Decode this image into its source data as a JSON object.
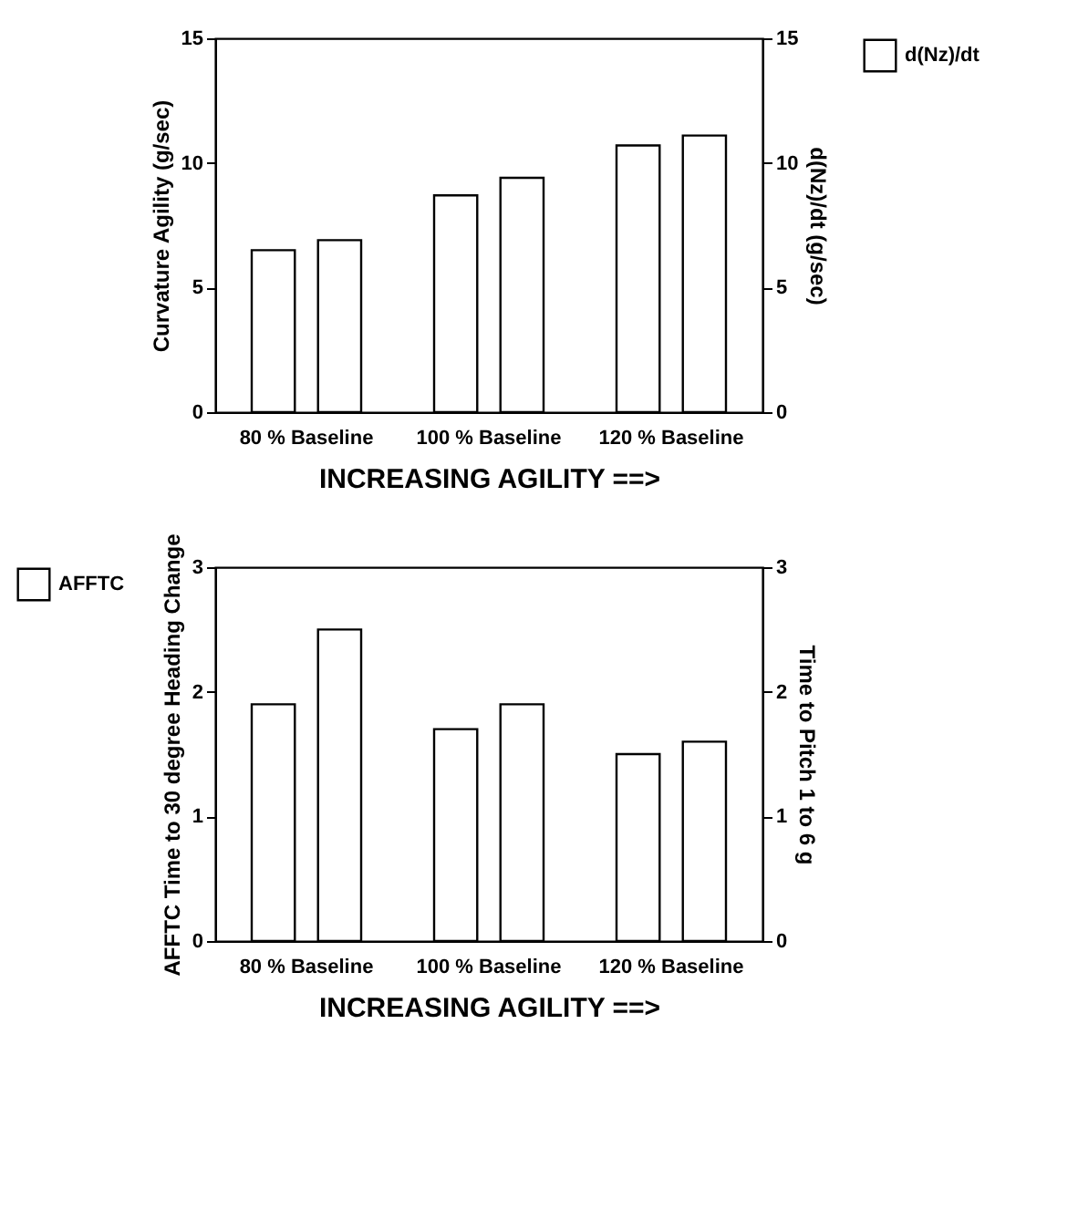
{
  "chart_data": [
    {
      "type": "bar",
      "categories": [
        "80 % Baseline",
        "100 % Baseline",
        "120 % Baseline"
      ],
      "xlabel": "INCREASING AGILITY ==>",
      "ylabel": "Curvature Agility (g/sec)",
      "y2label": "d(Nz)/dt  (g/sec)",
      "ylim": [
        0,
        15
      ],
      "yticks": [
        0,
        5,
        10,
        15
      ],
      "y2lim": [
        0,
        15
      ],
      "y2ticks": [
        0,
        5,
        10,
        15
      ],
      "grid": false,
      "legend": "right",
      "series": [
        {
          "color": "#ffffff",
          "values": [
            6.5,
            8.7,
            10.7
          ]
        },
        {
          "name": "d(Nz)/dt",
          "color": "#ffffff",
          "axis": "y2",
          "values": [
            6.9,
            9.4,
            11.1
          ]
        }
      ]
    },
    {
      "type": "bar",
      "categories": [
        "80 % Baseline",
        "100 % Baseline",
        "120 % Baseline"
      ],
      "xlabel": "INCREASING AGILITY ==>",
      "ylabel": "AFFTC Time to 30 degree Heading Change",
      "y2label": "Time to Pitch 1 to 6 g",
      "ylim": [
        0,
        3
      ],
      "yticks": [
        0,
        1,
        2,
        3
      ],
      "y2lim": [
        0,
        3
      ],
      "y2ticks": [
        0,
        1,
        2,
        3
      ],
      "grid": false,
      "legend": "left",
      "series": [
        {
          "name": "AFFTC",
          "color": "#ffffff",
          "values": [
            1.9,
            1.7,
            1.5
          ]
        },
        {
          "color": "#ffffff",
          "axis": "y2",
          "values": [
            2.5,
            1.9,
            1.6
          ]
        }
      ]
    }
  ]
}
